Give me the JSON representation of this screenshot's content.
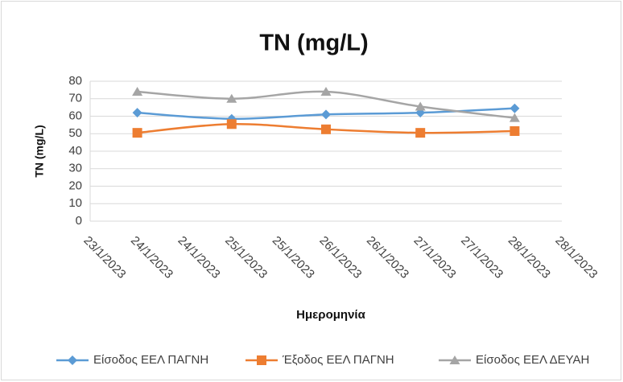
{
  "chart_data": {
    "type": "line",
    "title": "TN (mg/L)",
    "y_label": "TN (mg/L)",
    "x_label": "Ημερομηνία",
    "x": [
      "24/1/2023",
      "25/1/2023",
      "26/1/2023",
      "27/1/2023",
      "28/1/2023"
    ],
    "xticks": [
      "23/1/2023",
      "24/1/2023",
      "24/1/2023",
      "25/1/2023",
      "25/1/2023",
      "26/1/2023",
      "26/1/2023",
      "27/1/2023",
      "27/1/2023",
      "28/1/2023",
      "28/1/2023"
    ],
    "series": [
      {
        "name": "Είσοδος ΕΕΛ ΠΑΓΝΗ",
        "color": "#5b9bd5",
        "marker": "diamond",
        "values": [
          62,
          58.5,
          61,
          62,
          64.5
        ]
      },
      {
        "name": "Έξοδος ΕΕΛ ΠΑΓΝΗ",
        "color": "#ed7d31",
        "marker": "square",
        "values": [
          50.5,
          55.5,
          52.5,
          50.5,
          51.5
        ]
      },
      {
        "name": "Είσοδος ΕΕΛ ΔΕΥΑΗ",
        "color": "#a5a5a5",
        "marker": "triangle",
        "values": [
          74,
          70,
          74,
          65.5,
          59
        ]
      }
    ],
    "ylim": [
      0,
      80
    ],
    "yticks": [
      0,
      10,
      20,
      30,
      40,
      50,
      60,
      70,
      80
    ],
    "grid": true,
    "smooth": true,
    "legend": "bottom"
  }
}
